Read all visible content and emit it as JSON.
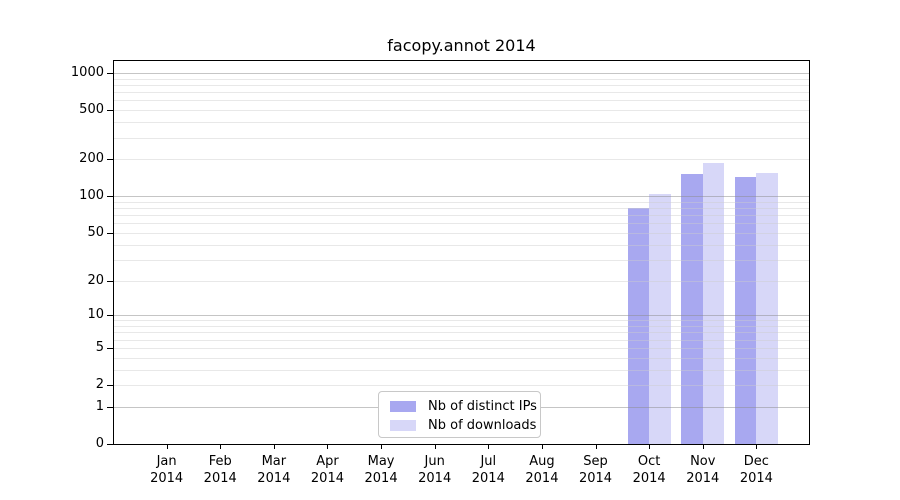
{
  "chart_data": {
    "type": "bar",
    "title": "facopy.annot 2014",
    "categories": [
      "Jan",
      "Feb",
      "Mar",
      "Apr",
      "May",
      "Jun",
      "Jul",
      "Aug",
      "Sep",
      "Oct",
      "Nov",
      "Dec"
    ],
    "x_tick_year": "2014",
    "series": [
      {
        "name": "Nb of distinct IPs",
        "color": "#a8a8f0",
        "values": [
          0,
          0,
          0,
          0,
          0,
          0,
          0,
          0,
          0,
          80,
          152,
          143
        ]
      },
      {
        "name": "Nb of downloads",
        "color": "#d7d7f8",
        "values": [
          0,
          0,
          0,
          0,
          0,
          0,
          0,
          0,
          0,
          105,
          185,
          155
        ]
      }
    ],
    "y_axis": {
      "scale": "log10(value+1)",
      "ticks": [
        0,
        1,
        2,
        5,
        10,
        20,
        50,
        100,
        200,
        500,
        1000
      ],
      "range_top_value": 1280,
      "major_gridlines": [
        1,
        10,
        100,
        1000
      ],
      "minor_gridlines": [
        2,
        3,
        4,
        5,
        6,
        7,
        8,
        9,
        20,
        30,
        40,
        50,
        60,
        70,
        80,
        90,
        200,
        300,
        400,
        500,
        600,
        700,
        800,
        900
      ]
    },
    "legend": {
      "position": "lower center",
      "entries": [
        "Nb of distinct IPs",
        "Nb of downloads"
      ]
    }
  }
}
